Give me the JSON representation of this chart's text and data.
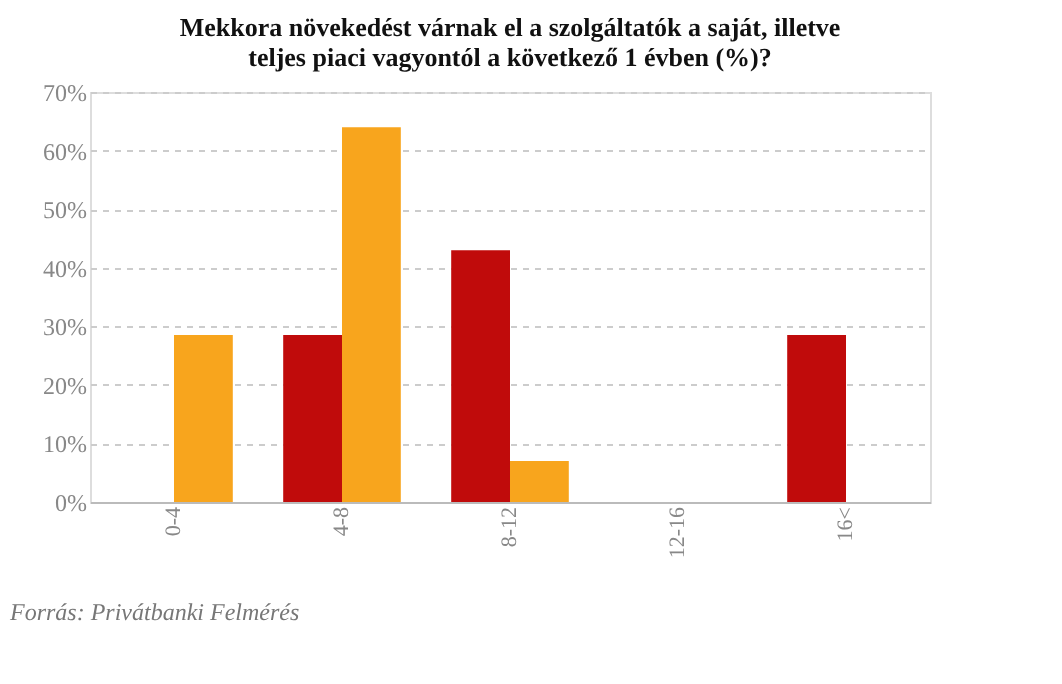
{
  "chart_data": {
    "type": "bar",
    "title": [
      "Mekkora növekedést  várnak el a szolgáltatók a saját, illetve",
      "teljes piaci vagyontól  a következő  1 évben  (%)?"
    ],
    "categories": [
      "0-4",
      "4-8",
      "8-12",
      "12-16",
      "16<"
    ],
    "series": [
      {
        "color": "#c00b0b",
        "values": [
          0,
          28.5,
          43,
          0,
          28.5
        ]
      },
      {
        "color": "#f8a51d",
        "values": [
          28.5,
          64,
          7,
          0,
          0
        ]
      }
    ],
    "ylim": [
      0,
      70
    ],
    "yticks": [
      {
        "value": 0,
        "label": "0%"
      },
      {
        "value": 10,
        "label": "10%"
      },
      {
        "value": 20,
        "label": "20%"
      },
      {
        "value": 30,
        "label": "30%"
      },
      {
        "value": 40,
        "label": "40%"
      },
      {
        "value": 50,
        "label": "50%"
      },
      {
        "value": 60,
        "label": "60%"
      },
      {
        "value": 70,
        "label": "70%"
      }
    ],
    "grid": "y",
    "annotations": [
      "Forrás: Privátbanki Felmérés"
    ]
  }
}
